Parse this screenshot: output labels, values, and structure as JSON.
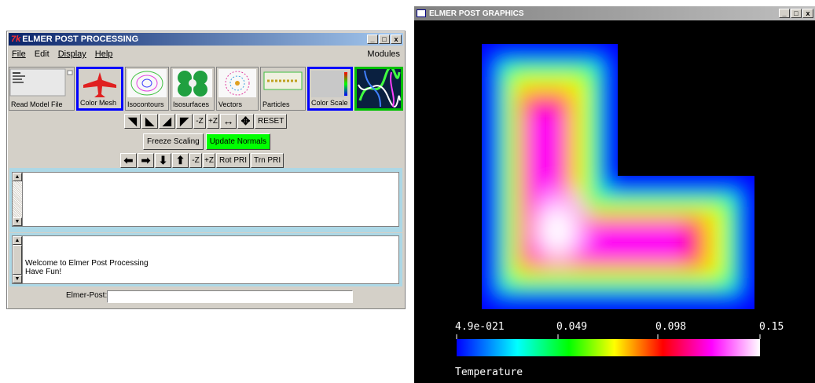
{
  "post_window": {
    "title": "ELMER POST PROCESSING",
    "logo_text": "7k",
    "controls": {
      "minimize": "_",
      "maximize": "□",
      "close": "x"
    },
    "menu": {
      "file": "File",
      "edit": "Edit",
      "display": "Display",
      "help": "Help",
      "modules": "Modules"
    },
    "tools": {
      "read_model": "Read Model File",
      "color_mesh": "Color Mesh",
      "isocontours": "Isocontours",
      "isosurfaces": "Isosurfaces",
      "vectors": "Vectors",
      "particles": "Particles",
      "color_scale": "Color Scale"
    },
    "rotate_row": {
      "minus_z": "-Z",
      "plus_z": "+Z",
      "reset": "RESET"
    },
    "freeze_scaling": "Freeze Scaling",
    "update_normals": "Update Normals",
    "translate_row": {
      "minus_z": "-Z",
      "plus_z": "+Z",
      "rot_pri": "Rot PRI",
      "trn_pri": "Trn PRI"
    },
    "messages": [
      "Welcome to Elmer Post Processing",
      "Have Fun!"
    ],
    "command_label": "Elmer-Post:",
    "command_value": ""
  },
  "graphics_window": {
    "title": "ELMER POST GRAPHICS",
    "controls": {
      "minimize": "_",
      "maximize": "□",
      "close": "x"
    },
    "scale": {
      "ticks": [
        "4.9e-021",
        "0.049",
        "0.098",
        "0.15"
      ],
      "variable": "Temperature",
      "stops": [
        "#0000ff",
        "#00ffff",
        "#00ff00",
        "#ffff00",
        "#ff0000",
        "#ff00ff",
        "#ffffff"
      ]
    }
  }
}
